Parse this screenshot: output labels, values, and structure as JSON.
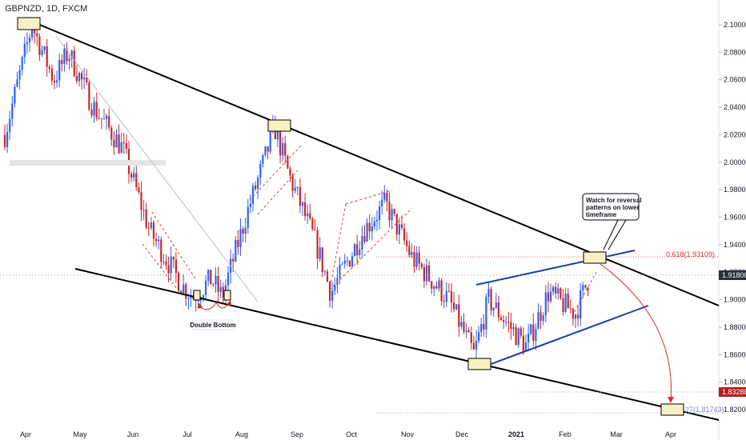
{
  "header": {
    "ticker": "GBPNZD, 1D, FXCM"
  },
  "colors": {
    "up": "#2962ff",
    "down": "#c62828",
    "trend": "#000000",
    "channel": "#1a3fa8",
    "fib": "#d32f2f",
    "price_badge": "#2a2e39",
    "target_badge": "#b71c1c",
    "highlight": "#f7f0c2"
  },
  "annotations": {
    "double_bottom": "Double Bottom",
    "callout_line1": "Watch for reversal",
    "callout_line2": "patterns on lower",
    "callout_line3": "timeframe",
    "fib_618": "0.618(1.93109)",
    "fib_27": "27(1.81743)"
  },
  "price_badges": {
    "current": "1.91800",
    "target": "1.83288"
  },
  "chart_data": {
    "type": "candlestick",
    "title": "GBPNZD, 1D, FXCM",
    "y_ticks": [
      "2.10000",
      "2.08000",
      "2.06000",
      "2.04000",
      "2.02000",
      "2.00000",
      "1.98000",
      "1.96000",
      "1.94000",
      "1.92000",
      "1.90000",
      "1.88000",
      "1.86000",
      "1.84000",
      "1.82000"
    ],
    "x_ticks": [
      "Apr",
      "May",
      "Jun",
      "Jul",
      "Aug",
      "Sep",
      "Oct",
      "Nov",
      "Dec",
      "2021",
      "Feb",
      "Mar",
      "Apr"
    ],
    "ylim": [
      1.81,
      2.11
    ],
    "grid": false,
    "current_price": 1.918,
    "target_price": 1.83288,
    "fib_levels": [
      {
        "label": "0.618(1.93109)",
        "value": 1.93109
      },
      {
        "label": "27(1.81743)",
        "value": 1.81743
      }
    ],
    "close_path": [
      {
        "date": "2020-03-24",
        "close": 2.02
      },
      {
        "date": "2020-04-08",
        "close": 2.1
      },
      {
        "date": "2020-04-20",
        "close": 2.06
      },
      {
        "date": "2020-04-28",
        "close": 2.08
      },
      {
        "date": "2020-05-12",
        "close": 2.04
      },
      {
        "date": "2020-05-28",
        "close": 2.01
      },
      {
        "date": "2020-06-12",
        "close": 1.95
      },
      {
        "date": "2020-06-30",
        "close": 1.91
      },
      {
        "date": "2020-07-06",
        "close": 1.902
      },
      {
        "date": "2020-07-16",
        "close": 1.915
      },
      {
        "date": "2020-07-22",
        "close": 1.902
      },
      {
        "date": "2020-08-04",
        "close": 1.96
      },
      {
        "date": "2020-08-20",
        "close": 2.025
      },
      {
        "date": "2020-08-28",
        "close": 1.99
      },
      {
        "date": "2020-09-12",
        "close": 1.94
      },
      {
        "date": "2020-09-20",
        "close": 1.905
      },
      {
        "date": "2020-10-08",
        "close": 1.95
      },
      {
        "date": "2020-10-20",
        "close": 1.97
      },
      {
        "date": "2020-11-04",
        "close": 1.93
      },
      {
        "date": "2020-11-24",
        "close": 1.9
      },
      {
        "date": "2020-12-08",
        "close": 1.86
      },
      {
        "date": "2020-12-16",
        "close": 1.9
      },
      {
        "date": "2020-12-28",
        "close": 1.88
      },
      {
        "date": "2021-01-06",
        "close": 1.866
      },
      {
        "date": "2021-01-18",
        "close": 1.905
      },
      {
        "date": "2021-02-02",
        "close": 1.89
      },
      {
        "date": "2021-02-10",
        "close": 1.918
      }
    ]
  }
}
